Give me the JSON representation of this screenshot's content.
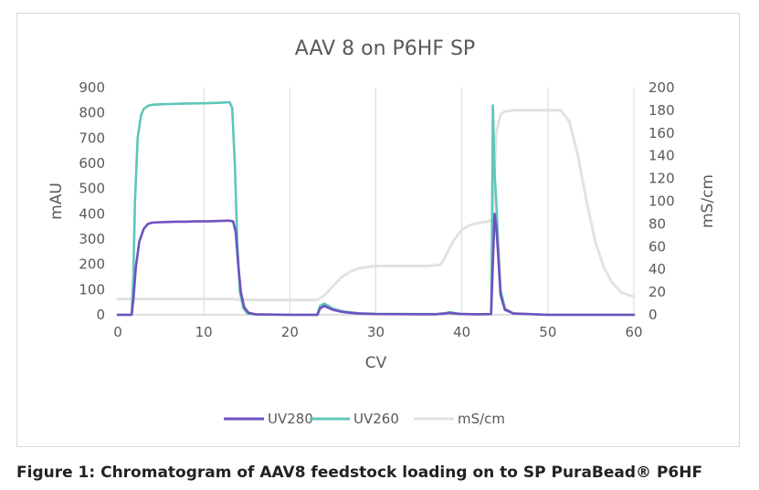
{
  "caption": "Figure 1: Chromatogram of AAV8 feedstock loading on to SP PuraBead® P6HF",
  "chart_data": {
    "type": "line",
    "title": "AAV  8 on P6HF SP",
    "xlabel": "CV",
    "ylabel": "mAU",
    "y2label": "mS/cm",
    "xlim": [
      0,
      60
    ],
    "ylim": [
      0,
      900
    ],
    "y2lim": [
      0,
      200
    ],
    "x_ticks": [
      0,
      10,
      20,
      30,
      40,
      50,
      60
    ],
    "y_ticks": [
      0,
      100,
      200,
      300,
      400,
      500,
      600,
      700,
      800,
      900
    ],
    "y2_ticks": [
      0,
      20,
      40,
      60,
      80,
      100,
      120,
      140,
      160,
      180,
      200
    ],
    "grid": "vertical",
    "legend_position": "bottom",
    "series": [
      {
        "name": "UV280",
        "axis": "left",
        "color": "#7050c0",
        "x": [
          0,
          1.6,
          1.8,
          2.1,
          2.5,
          3,
          3.5,
          4,
          5,
          6,
          7,
          8,
          9,
          10,
          11,
          12,
          13,
          13.4,
          13.7,
          14,
          14.3,
          14.7,
          15.2,
          16,
          20,
          23.2,
          23.5,
          24,
          25,
          26,
          27,
          28,
          30,
          35,
          37,
          38,
          38.6,
          39.5,
          40,
          42,
          43.4,
          43.6,
          43.8,
          44,
          44.2,
          44.5,
          45,
          46,
          50,
          55,
          60
        ],
        "y": [
          0,
          0,
          60,
          190,
          290,
          340,
          360,
          365,
          367,
          368,
          369,
          369,
          370,
          370,
          371,
          372,
          373,
          370,
          330,
          200,
          90,
          30,
          8,
          2,
          0,
          0,
          25,
          35,
          20,
          12,
          8,
          5,
          3,
          2,
          2,
          5,
          8,
          4,
          3,
          2,
          3,
          200,
          400,
          350,
          250,
          80,
          20,
          5,
          0,
          0,
          0
        ]
      },
      {
        "name": "UV260",
        "axis": "left",
        "color": "#5fc7b8",
        "x": [
          0,
          1.6,
          1.8,
          2,
          2.3,
          2.7,
          3,
          3.5,
          4,
          5,
          6,
          8,
          10,
          12,
          13,
          13.3,
          13.6,
          13.9,
          14.2,
          14.6,
          15.1,
          16,
          20,
          23.2,
          23.5,
          24,
          25,
          26,
          27,
          28,
          30,
          35,
          37,
          38,
          38.6,
          39.5,
          40,
          42,
          43.4,
          43.5,
          43.6,
          43.7,
          43.8,
          44,
          44.2,
          44.5,
          45,
          46,
          50,
          55,
          60
        ],
        "y": [
          0,
          0,
          150,
          450,
          700,
          790,
          815,
          828,
          832,
          834,
          835,
          837,
          838,
          840,
          842,
          820,
          600,
          280,
          90,
          25,
          5,
          1,
          0,
          0,
          35,
          45,
          25,
          15,
          10,
          6,
          4,
          3,
          3,
          6,
          10,
          5,
          3,
          2,
          3,
          300,
          830,
          700,
          560,
          450,
          300,
          100,
          25,
          5,
          0,
          0,
          0
        ]
      },
      {
        "name": "mS/cm",
        "axis": "right",
        "color": "#e2e2e2",
        "x": [
          0,
          5,
          10,
          13,
          14,
          16,
          20,
          22,
          23.2,
          24,
          25,
          26,
          27,
          28,
          30,
          33,
          36,
          37.5,
          38,
          39,
          40,
          41,
          42,
          43,
          43.6,
          44,
          44.5,
          45,
          46,
          48,
          50,
          51.5,
          52.5,
          53.5,
          54.5,
          55.5,
          56.5,
          57.5,
          58.5,
          59.5,
          60
        ],
        "y": [
          14,
          14,
          14,
          14,
          13.5,
          13,
          13,
          13,
          13,
          17,
          25,
          33,
          38,
          41,
          43,
          43,
          43,
          44,
          50,
          65,
          75,
          79,
          81,
          82,
          84,
          160,
          176,
          179,
          180,
          180,
          180,
          180,
          170,
          140,
          100,
          65,
          42,
          28,
          20,
          17,
          16
        ]
      }
    ]
  }
}
